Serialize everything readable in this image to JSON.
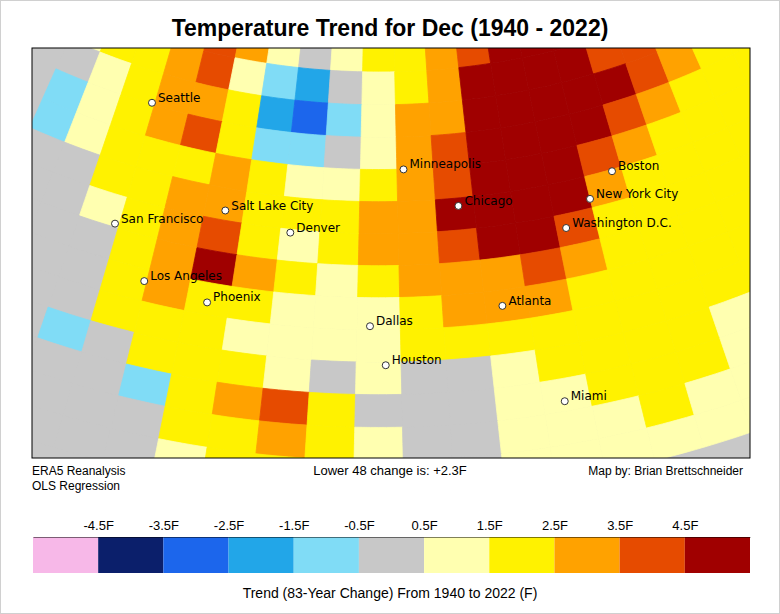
{
  "chart_data": {
    "type": "map",
    "title": "Temperature Trend for Dec (1940 - 2022)",
    "notes": {
      "source": "ERA5 Reanalysis",
      "method": "OLS Regression",
      "summary": "Lower 48 change is: +2.3F",
      "credit": "Map by: Brian Brettschneider"
    },
    "cells": {
      "lon": [
        -132,
        -128,
        -124,
        -120,
        -116,
        -112,
        -108,
        -104,
        -100,
        -96,
        -92,
        -88,
        -84,
        -80,
        -76,
        -72,
        -68,
        -64,
        -60,
        -56,
        -52
      ],
      "lat": [
        53.75,
        51.25,
        48.75,
        46.25,
        43.75,
        41.25,
        38.75,
        36.25,
        33.75,
        31.25,
        28.75,
        26.25,
        23.75,
        21.25
      ],
      "values": [
        [
          1.0,
          1.5,
          2.0,
          3.0,
          4.0,
          3.0,
          1.0,
          0.0,
          1.0,
          2.0,
          2.0,
          3.0,
          4.0,
          5.0,
          5.0,
          5.0,
          5.0,
          4.0,
          3.0,
          3.0,
          3.0
        ],
        [
          1.0,
          2.0,
          2.0,
          3.0,
          3.5,
          1.0,
          -0.8,
          -1.8,
          0.0,
          1.0,
          2.0,
          3.0,
          5.0,
          5.0,
          5.0,
          5.0,
          4.0,
          4.0,
          3.0,
          3.0,
          2.0
        ],
        [
          0.3,
          1.0,
          2.0,
          2.5,
          3.0,
          1.5,
          -2.0,
          -3.0,
          -1.0,
          1.0,
          2.7,
          3.0,
          5.0,
          5.0,
          5.0,
          5.0,
          4.8,
          4.0,
          3.0,
          2.0,
          2.0
        ],
        [
          -0.7,
          1.2,
          2.0,
          2.5,
          3.5,
          2.0,
          -1.0,
          -1.5,
          0.3,
          1.3,
          3.0,
          3.6,
          5.0,
          5.0,
          5.0,
          4.5,
          3.5,
          2.5,
          2.0,
          2.0,
          2.0
        ],
        [
          -0.8,
          1.0,
          2.0,
          2.0,
          2.0,
          2.7,
          1.5,
          0.8,
          1.0,
          2.0,
          3.0,
          4.0,
          5.0,
          5.0,
          5.0,
          4.0,
          3.0,
          2.0,
          2.0,
          2.0,
          1.5
        ],
        [
          0.0,
          0.3,
          1.5,
          2.0,
          2.5,
          3.0,
          2.0,
          1.6,
          2.0,
          2.7,
          3.3,
          4.6,
          5.0,
          5.0,
          4.8,
          2.5,
          2.0,
          2.0,
          2.0,
          2.0,
          1.5
        ],
        [
          0.0,
          0.0,
          1.0,
          2.0,
          3.0,
          4.0,
          2.0,
          1.2,
          1.6,
          2.7,
          3.0,
          4.0,
          4.6,
          4.7,
          4.0,
          2.0,
          2.0,
          2.0,
          2.0,
          1.5,
          1.5
        ],
        [
          0.0,
          0.0,
          0.3,
          1.8,
          3.0,
          4.6,
          3.0,
          1.5,
          1.2,
          1.8,
          2.7,
          3.0,
          3.2,
          3.7,
          3.0,
          2.0,
          2.0,
          1.5,
          1.5,
          1.5,
          1.5
        ],
        [
          0.0,
          0.3,
          0.0,
          2.0,
          2.6,
          2.0,
          1.8,
          1.2,
          1.0,
          1.2,
          1.8,
          2.7,
          3.0,
          2.7,
          2.0,
          2.0,
          2.0,
          1.5,
          1.5,
          1.5,
          1.5
        ],
        [
          0.0,
          0.0,
          0.3,
          1.6,
          2.0,
          2.0,
          1.2,
          1.0,
          0.8,
          1.0,
          1.6,
          1.6,
          2.0,
          2.0,
          2.0,
          2.0,
          2.0,
          1.8,
          1.5,
          1.5,
          1.5
        ],
        [
          0.0,
          0.0,
          -0.7,
          0.3,
          1.6,
          1.6,
          2.0,
          1.2,
          0.3,
          0.5,
          0.3,
          0.4,
          1.2,
          2.0,
          2.0,
          2.0,
          2.0,
          1.4,
          1.4,
          1.4,
          1.4
        ],
        [
          0.0,
          0.0,
          0.0,
          0.0,
          -0.8,
          2.0,
          3.2,
          4.0,
          2.0,
          0.3,
          0.0,
          0.3,
          1.0,
          1.3,
          1.8,
          2.0,
          1.6,
          1.4,
          1.2,
          1.2,
          1.2
        ],
        [
          0.0,
          0.0,
          0.0,
          0.0,
          0.3,
          1.6,
          2.0,
          2.6,
          1.6,
          0.6,
          0.2,
          0.3,
          0.8,
          1.0,
          1.4,
          1.6,
          1.4,
          1.2,
          1.0,
          1.0,
          1.0
        ],
        [
          0.0,
          0.0,
          0.0,
          0.0,
          0.0,
          1.0,
          1.6,
          2.0,
          1.4,
          0.6,
          0.2,
          0.3,
          0.6,
          0.8,
          1.0,
          1.2,
          1.0,
          1.0,
          1.0,
          1.0,
          1.0
        ]
      ]
    },
    "cities": [
      {
        "name": "Seattle",
        "lon": -122.33,
        "lat": 47.61
      },
      {
        "name": "San Francisco",
        "lon": -122.42,
        "lat": 37.77
      },
      {
        "name": "Los Angeles",
        "lon": -118.24,
        "lat": 34.05
      },
      {
        "name": "Phoenix",
        "lon": -112.07,
        "lat": 33.45
      },
      {
        "name": "Salt Lake City",
        "lon": -111.89,
        "lat": 40.76
      },
      {
        "name": "Denver",
        "lon": -104.99,
        "lat": 39.74
      },
      {
        "name": "Minneapolis",
        "lon": -93.27,
        "lat": 44.98
      },
      {
        "name": "Chicago",
        "lon": -87.63,
        "lat": 41.88
      },
      {
        "name": "Dallas",
        "lon": -96.8,
        "lat": 32.78
      },
      {
        "name": "Houston",
        "lon": -95.37,
        "lat": 29.76
      },
      {
        "name": "Atlanta",
        "lon": -84.39,
        "lat": 33.75
      },
      {
        "name": "Miami",
        "lon": -80.19,
        "lat": 25.76
      },
      {
        "name": "Boston",
        "lon": -71.06,
        "lat": 42.36
      },
      {
        "name": "New York City",
        "lon": -74.01,
        "lat": 40.71
      },
      {
        "name": "Washington D.C.",
        "lon": -77.04,
        "lat": 38.91
      }
    ],
    "colorbar": {
      "label": "Trend (83-Year Change) From 1940 to 2022 (F)",
      "range": [
        -5.5,
        5.5
      ],
      "ticks": [
        {
          "value": -4.5,
          "label": "-4.5F"
        },
        {
          "value": -3.5,
          "label": "-3.5F"
        },
        {
          "value": -2.5,
          "label": "-2.5F"
        },
        {
          "value": -1.5,
          "label": "-1.5F"
        },
        {
          "value": -0.5,
          "label": "-0.5F"
        },
        {
          "value": 0.5,
          "label": "0.5F"
        },
        {
          "value": 1.5,
          "label": "1.5F"
        },
        {
          "value": 2.5,
          "label": "2.5F"
        },
        {
          "value": 3.5,
          "label": "3.5F"
        },
        {
          "value": 4.5,
          "label": "4.5F"
        }
      ],
      "colors": [
        "#f7b8e8",
        "#0b1f6b",
        "#1c66ec",
        "#22a6e8",
        "#80dcf6",
        "#c8c8c8",
        "#ffffb0",
        "#fff200",
        "#ffa200",
        "#e64b00",
        "#a00000"
      ]
    }
  }
}
